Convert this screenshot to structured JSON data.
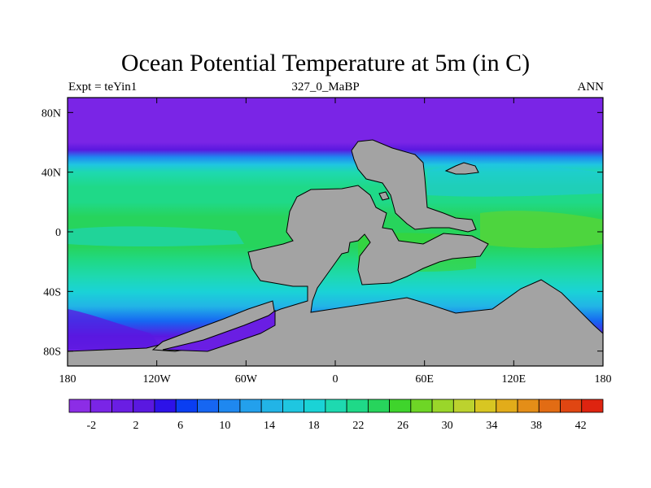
{
  "chart_data": {
    "type": "heatmap",
    "title": "Ocean Potential Temperature at 5m (in C)",
    "left_label": "Expt = teYin1",
    "center_label": "327_0_MaBP",
    "right_label": "ANN",
    "x_axis": {
      "range": [
        -180,
        180
      ],
      "ticks": [
        -180,
        -120,
        -60,
        0,
        60,
        120,
        180
      ],
      "tick_labels": [
        "180",
        "120W",
        "60W",
        "0",
        "60E",
        "120E",
        "180"
      ]
    },
    "y_axis": {
      "range": [
        -90,
        90
      ],
      "ticks": [
        80,
        40,
        0,
        -40,
        -80
      ],
      "tick_labels": [
        "80N",
        "40N",
        "0",
        "40S",
        "80S"
      ]
    },
    "colorbar": {
      "min": -4,
      "max": 44,
      "step": 2,
      "colors": [
        "#8c2de6",
        "#7a25e6",
        "#6a1ee3",
        "#5a18e0",
        "#2d12e8",
        "#0a3ef2",
        "#1666f2",
        "#1f88f0",
        "#23a0ec",
        "#22b4e6",
        "#1fc6e0",
        "#1ad3d6",
        "#1ed9b0",
        "#1fd988",
        "#27d45c",
        "#3fd42c",
        "#6ed626",
        "#9ad62a",
        "#bcd22e",
        "#d8c622",
        "#e2ac1a",
        "#e48e18",
        "#e26c14",
        "#e04612",
        "#de2410"
      ],
      "label_values": [
        -2,
        2,
        6,
        10,
        14,
        18,
        22,
        26,
        30,
        34,
        38,
        42
      ],
      "tick_labels": [
        "-2",
        "2",
        "6",
        "10",
        "14",
        "18",
        "22",
        "26",
        "30",
        "34",
        "38",
        "42"
      ]
    },
    "land_color": "#a3a3a3",
    "field_profile": {
      "latitudes": [
        90,
        70,
        60,
        55,
        50,
        45,
        40,
        30,
        20,
        10,
        0,
        -10,
        -20,
        -30,
        -40,
        -50,
        -60,
        -70,
        -80,
        -90
      ],
      "temperature_c": [
        -2,
        -2,
        -1,
        2,
        10,
        16,
        20,
        22,
        23,
        24,
        25,
        24,
        23,
        21,
        19,
        14,
        8,
        2,
        -1,
        -2
      ]
    }
  }
}
